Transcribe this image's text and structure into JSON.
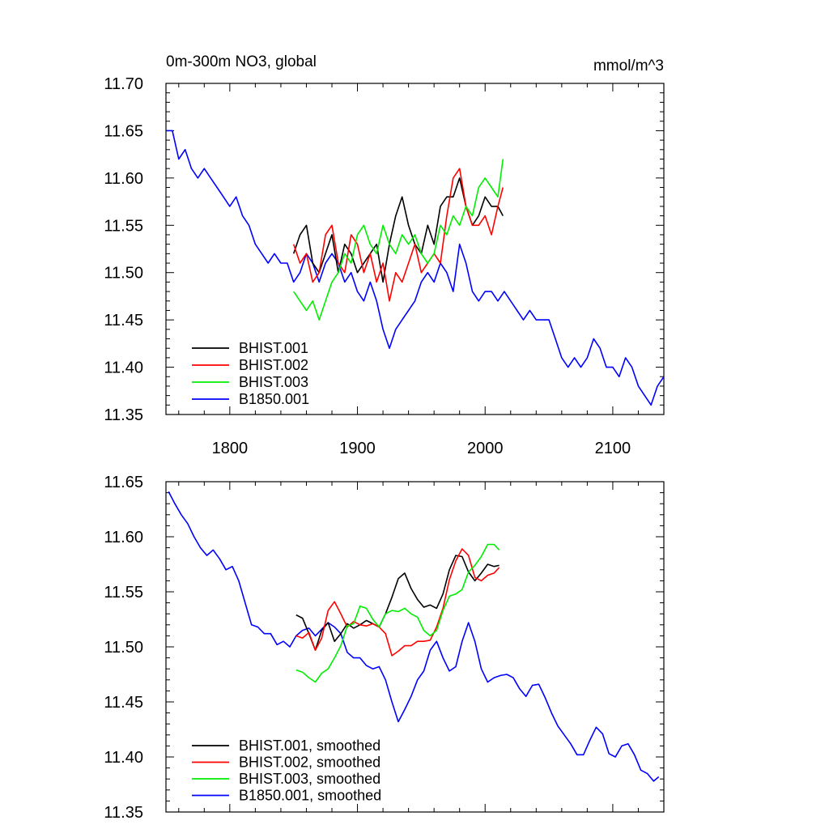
{
  "chart_data": [
    {
      "type": "line",
      "title": "0m-300m NO3, global",
      "units_label": "mmol/m^3",
      "xlabel": "",
      "ylabel": "",
      "xlim": [
        1750,
        2140
      ],
      "ylim": [
        11.35,
        11.7
      ],
      "x_ticks": [
        1800,
        1900,
        2000,
        2100
      ],
      "y_ticks": [
        11.35,
        11.4,
        11.45,
        11.5,
        11.55,
        11.6,
        11.65,
        11.7
      ],
      "y_tick_labels": [
        "11.35",
        "11.40",
        "11.45",
        "11.50",
        "11.55",
        "11.60",
        "11.65",
        "11.70"
      ],
      "x_tick_labels": [
        "1800",
        "1900",
        "2000",
        "2100"
      ],
      "show_x_tick_labels": true,
      "grid": false,
      "legend_position": "bottom-left",
      "series": [
        {
          "name": "BHIST.001",
          "color": "#000000",
          "x": [
            1850,
            1855,
            1860,
            1865,
            1870,
            1875,
            1880,
            1885,
            1890,
            1895,
            1900,
            1905,
            1910,
            1915,
            1920,
            1925,
            1930,
            1935,
            1940,
            1945,
            1950,
            1955,
            1960,
            1965,
            1970,
            1975,
            1980,
            1985,
            1990,
            1995,
            2000,
            2005,
            2010,
            2014
          ],
          "y": [
            11.52,
            11.54,
            11.55,
            11.51,
            11.5,
            11.52,
            11.54,
            11.5,
            11.53,
            11.52,
            11.5,
            11.51,
            11.52,
            11.53,
            11.49,
            11.53,
            11.56,
            11.58,
            11.55,
            11.53,
            11.52,
            11.55,
            11.53,
            11.57,
            11.58,
            11.58,
            11.6,
            11.57,
            11.55,
            11.56,
            11.58,
            11.57,
            11.57,
            11.56
          ]
        },
        {
          "name": "BHIST.002",
          "color": "#ff0000",
          "x": [
            1850,
            1855,
            1860,
            1865,
            1870,
            1875,
            1880,
            1885,
            1890,
            1895,
            1900,
            1905,
            1910,
            1915,
            1920,
            1925,
            1930,
            1935,
            1940,
            1945,
            1950,
            1955,
            1960,
            1965,
            1970,
            1975,
            1980,
            1985,
            1990,
            1995,
            2000,
            2005,
            2010,
            2014
          ],
          "y": [
            11.53,
            11.51,
            11.52,
            11.49,
            11.5,
            11.54,
            11.55,
            11.51,
            11.5,
            11.54,
            11.53,
            11.5,
            11.52,
            11.49,
            11.51,
            11.47,
            11.5,
            11.49,
            11.51,
            11.53,
            11.5,
            11.51,
            11.52,
            11.51,
            11.56,
            11.6,
            11.61,
            11.57,
            11.55,
            11.55,
            11.56,
            11.54,
            11.57,
            11.59
          ]
        },
        {
          "name": "BHIST.003",
          "color": "#00ee00",
          "x": [
            1850,
            1855,
            1860,
            1865,
            1870,
            1875,
            1880,
            1885,
            1890,
            1895,
            1900,
            1905,
            1910,
            1915,
            1920,
            1925,
            1930,
            1935,
            1940,
            1945,
            1950,
            1955,
            1960,
            1965,
            1970,
            1975,
            1980,
            1985,
            1990,
            1995,
            2000,
            2005,
            2010,
            2014
          ],
          "y": [
            11.48,
            11.47,
            11.46,
            11.47,
            11.45,
            11.47,
            11.49,
            11.5,
            11.52,
            11.51,
            11.54,
            11.55,
            11.53,
            11.52,
            11.55,
            11.53,
            11.52,
            11.54,
            11.53,
            11.54,
            11.52,
            11.51,
            11.52,
            11.55,
            11.54,
            11.56,
            11.55,
            11.57,
            11.56,
            11.59,
            11.6,
            11.59,
            11.58,
            11.62
          ]
        },
        {
          "name": "B1850.001",
          "color": "#0000ff",
          "x": [
            1750,
            1755,
            1760,
            1765,
            1770,
            1775,
            1780,
            1785,
            1790,
            1795,
            1800,
            1805,
            1810,
            1815,
            1820,
            1825,
            1830,
            1835,
            1840,
            1845,
            1850,
            1855,
            1860,
            1865,
            1870,
            1875,
            1880,
            1885,
            1890,
            1895,
            1900,
            1905,
            1910,
            1915,
            1920,
            1925,
            1930,
            1935,
            1940,
            1945,
            1950,
            1955,
            1960,
            1965,
            1970,
            1975,
            1980,
            1985,
            1990,
            1995,
            2000,
            2005,
            2010,
            2015,
            2020,
            2025,
            2030,
            2035,
            2040,
            2045,
            2050,
            2055,
            2060,
            2065,
            2070,
            2075,
            2080,
            2085,
            2090,
            2095,
            2100,
            2105,
            2110,
            2115,
            2120,
            2125,
            2130,
            2135,
            2140
          ],
          "y": [
            11.65,
            11.65,
            11.62,
            11.63,
            11.61,
            11.6,
            11.61,
            11.6,
            11.59,
            11.58,
            11.57,
            11.58,
            11.56,
            11.55,
            11.53,
            11.52,
            11.51,
            11.52,
            11.51,
            11.51,
            11.49,
            11.5,
            11.52,
            11.51,
            11.49,
            11.51,
            11.52,
            11.51,
            11.49,
            11.5,
            11.48,
            11.47,
            11.49,
            11.47,
            11.44,
            11.42,
            11.44,
            11.45,
            11.46,
            11.47,
            11.49,
            11.5,
            11.49,
            11.51,
            11.5,
            11.48,
            11.53,
            11.51,
            11.48,
            11.47,
            11.48,
            11.48,
            11.47,
            11.48,
            11.47,
            11.46,
            11.45,
            11.46,
            11.45,
            11.45,
            11.45,
            11.43,
            11.41,
            11.4,
            11.41,
            11.4,
            11.41,
            11.43,
            11.42,
            11.4,
            11.4,
            11.39,
            11.41,
            11.4,
            11.38,
            11.37,
            11.36,
            11.38,
            11.39
          ]
        }
      ]
    },
    {
      "type": "line",
      "title": "",
      "units_label": "",
      "xlabel": "",
      "ylabel": "",
      "xlim": [
        1750,
        2140
      ],
      "ylim": [
        11.35,
        11.65
      ],
      "x_ticks": [
        1800,
        1900,
        2000,
        2100
      ],
      "y_ticks": [
        11.35,
        11.4,
        11.45,
        11.5,
        11.55,
        11.6,
        11.65
      ],
      "y_tick_labels": [
        "11.35",
        "11.40",
        "11.45",
        "11.50",
        "11.55",
        "11.60",
        "11.65"
      ],
      "x_tick_labels": [],
      "show_x_tick_labels": false,
      "grid": false,
      "legend_position": "bottom-left",
      "series": [
        {
          "name": "BHIST.001, smoothed",
          "color": "#000000",
          "x": [
            1852,
            1857,
            1862,
            1867,
            1872,
            1877,
            1882,
            1887,
            1892,
            1897,
            1902,
            1907,
            1912,
            1917,
            1922,
            1927,
            1932,
            1937,
            1942,
            1947,
            1952,
            1957,
            1962,
            1967,
            1972,
            1977,
            1982,
            1987,
            1992,
            1997,
            2002,
            2007,
            2011
          ],
          "y": [
            11.529,
            11.526,
            11.512,
            11.497,
            11.515,
            11.522,
            11.505,
            11.512,
            11.521,
            11.517,
            11.52,
            11.524,
            11.521,
            11.518,
            11.53,
            11.545,
            11.562,
            11.567,
            11.553,
            11.543,
            11.536,
            11.538,
            11.535,
            11.548,
            11.57,
            11.583,
            11.582,
            11.568,
            11.56,
            11.567,
            11.575,
            11.573,
            11.574
          ]
        },
        {
          "name": "BHIST.002, smoothed",
          "color": "#ff0000",
          "x": [
            1852,
            1857,
            1862,
            1867,
            1872,
            1877,
            1882,
            1887,
            1892,
            1897,
            1902,
            1907,
            1912,
            1917,
            1922,
            1927,
            1932,
            1937,
            1942,
            1947,
            1952,
            1957,
            1962,
            1967,
            1972,
            1977,
            1982,
            1987,
            1992,
            1997,
            2002,
            2007,
            2011
          ],
          "y": [
            11.51,
            11.508,
            11.513,
            11.497,
            11.508,
            11.533,
            11.541,
            11.53,
            11.518,
            11.523,
            11.52,
            11.519,
            11.521,
            11.518,
            11.512,
            11.492,
            11.496,
            11.501,
            11.501,
            11.505,
            11.505,
            11.506,
            11.518,
            11.535,
            11.561,
            11.578,
            11.589,
            11.583,
            11.563,
            11.56,
            11.565,
            11.567,
            11.572
          ]
        },
        {
          "name": "BHIST.003, smoothed",
          "color": "#00ee00",
          "x": [
            1852,
            1857,
            1862,
            1867,
            1872,
            1877,
            1882,
            1887,
            1892,
            1897,
            1902,
            1907,
            1912,
            1917,
            1922,
            1927,
            1932,
            1937,
            1942,
            1947,
            1952,
            1957,
            1962,
            1967,
            1972,
            1977,
            1982,
            1987,
            1992,
            1997,
            2002,
            2007,
            2011
          ],
          "y": [
            11.479,
            11.477,
            11.472,
            11.468,
            11.476,
            11.48,
            11.49,
            11.501,
            11.519,
            11.521,
            11.537,
            11.535,
            11.525,
            11.518,
            11.53,
            11.533,
            11.532,
            11.535,
            11.53,
            11.527,
            11.515,
            11.51,
            11.515,
            11.533,
            11.546,
            11.548,
            11.552,
            11.568,
            11.574,
            11.582,
            11.593,
            11.593,
            11.588
          ]
        },
        {
          "name": "B1850.001, smoothed",
          "color": "#0000ff",
          "x": [
            1752,
            1757,
            1762,
            1767,
            1772,
            1777,
            1782,
            1787,
            1792,
            1797,
            1802,
            1807,
            1812,
            1817,
            1822,
            1827,
            1832,
            1837,
            1842,
            1847,
            1852,
            1857,
            1862,
            1867,
            1872,
            1877,
            1882,
            1887,
            1892,
            1897,
            1902,
            1907,
            1912,
            1917,
            1922,
            1927,
            1932,
            1937,
            1942,
            1947,
            1952,
            1957,
            1962,
            1967,
            1972,
            1977,
            1982,
            1987,
            1992,
            1997,
            2002,
            2007,
            2012,
            2017,
            2022,
            2027,
            2032,
            2037,
            2042,
            2047,
            2052,
            2057,
            2062,
            2067,
            2072,
            2077,
            2082,
            2087,
            2092,
            2097,
            2102,
            2107,
            2112,
            2117,
            2122,
            2127,
            2132,
            2136
          ],
          "y": [
            11.641,
            11.63,
            11.62,
            11.612,
            11.6,
            11.59,
            11.583,
            11.588,
            11.58,
            11.57,
            11.573,
            11.56,
            11.54,
            11.52,
            11.518,
            11.512,
            11.512,
            11.502,
            11.505,
            11.5,
            11.51,
            11.515,
            11.517,
            11.51,
            11.516,
            11.522,
            11.518,
            11.512,
            11.495,
            11.49,
            11.49,
            11.483,
            11.48,
            11.482,
            11.47,
            11.45,
            11.432,
            11.443,
            11.455,
            11.47,
            11.478,
            11.497,
            11.505,
            11.49,
            11.478,
            11.482,
            11.505,
            11.522,
            11.505,
            11.48,
            11.468,
            11.472,
            11.474,
            11.475,
            11.472,
            11.462,
            11.455,
            11.465,
            11.466,
            11.454,
            11.44,
            11.428,
            11.42,
            11.412,
            11.402,
            11.402,
            11.415,
            11.427,
            11.421,
            11.403,
            11.4,
            11.41,
            11.412,
            11.402,
            11.388,
            11.385,
            11.378,
            11.382
          ]
        }
      ]
    }
  ]
}
